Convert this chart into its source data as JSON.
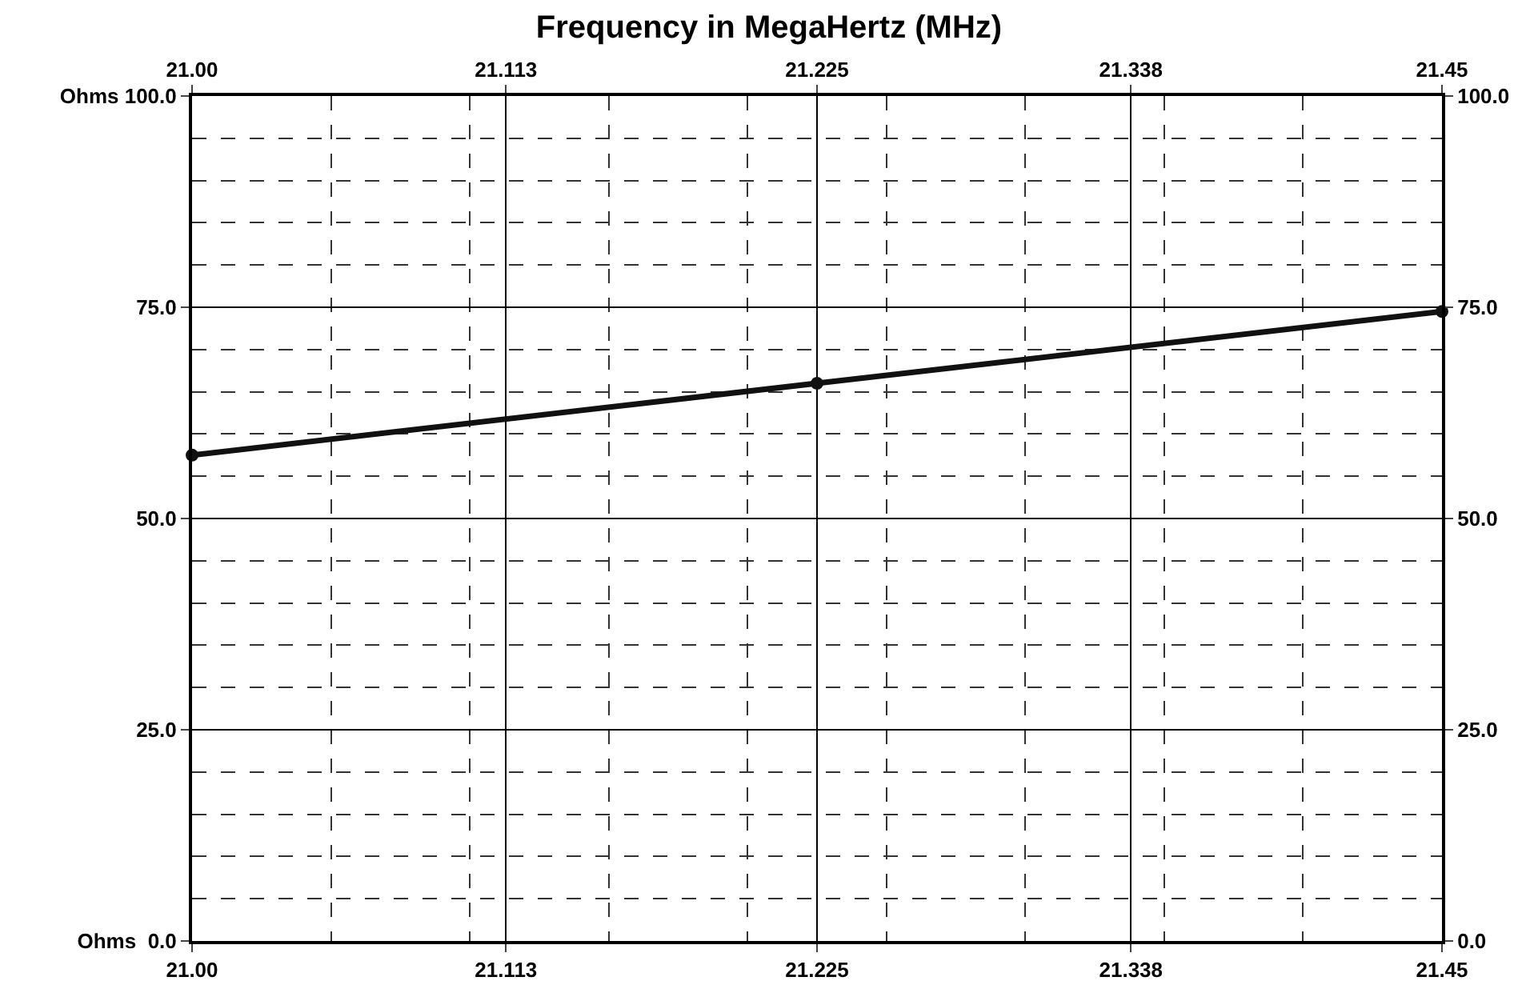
{
  "chart_data": {
    "type": "line",
    "title": "Frequency in MegaHertz (MHz)",
    "x": [
      21.0,
      21.225,
      21.45
    ],
    "series": [
      {
        "color": "#111111",
        "values": [
          57.5,
          66,
          74.5
        ]
      }
    ],
    "marker": "circle",
    "line_style": "solid",
    "grid": true,
    "legend": false,
    "xlim": [
      21.0,
      21.45
    ],
    "xticks": [
      {
        "value": 21.0,
        "label": "21.00"
      },
      21.113,
      21.225,
      21.338,
      21.45
    ],
    "x2lim": [
      21.0,
      21.45
    ],
    "x2ticks": [
      {
        "value": 21.0,
        "label": "21.00"
      },
      21.113,
      21.225,
      21.338,
      21.45
    ],
    "ylim": [
      0,
      100
    ],
    "yticks": [
      {
        "value": 0,
        "label": "Ohms  0.0"
      },
      {
        "value": 25,
        "label": "25.0"
      },
      {
        "value": 50,
        "label": "50.0"
      },
      {
        "value": 75,
        "label": "75.0"
      },
      {
        "value": 100,
        "label": "Ohms 100.0"
      }
    ],
    "y2lim": [
      0,
      100
    ],
    "y2ticks": [
      {
        "value": 0,
        "label": "0.0"
      },
      {
        "value": 25,
        "label": "25.0"
      },
      {
        "value": 50,
        "label": "50.0"
      },
      {
        "value": 75,
        "label": "75.0"
      },
      {
        "value": 100,
        "label": "100.0"
      }
    ]
  }
}
